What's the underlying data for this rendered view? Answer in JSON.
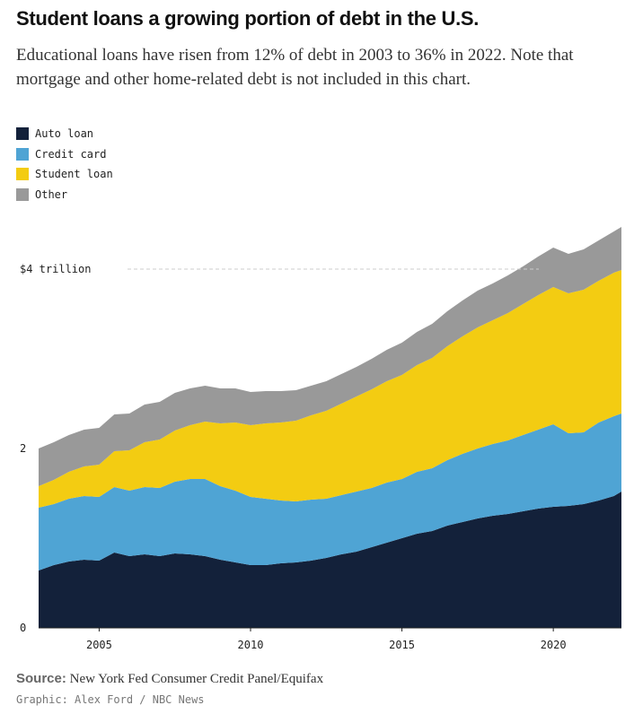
{
  "title": "Student loans a growing portion of debt in the U.S.",
  "subtitle": "Educational loans have risen from 12% of debt in 2003 to 36% in 2022. Note that mortgage and other home-related debt is not included in this chart.",
  "source": {
    "label": "Source:",
    "text": "New York Fed Consumer Credit Panel/Equifax"
  },
  "credit": "Graphic: Alex Ford / NBC News",
  "colors": {
    "auto": "#13213a",
    "credit": "#4fa4d4",
    "student": "#f3cc12",
    "other": "#999999",
    "reference_line": "#cccccc",
    "axis": "#222222"
  },
  "chart_data": {
    "type": "area",
    "stacked": true,
    "x": [
      2003.0,
      2003.5,
      2004.0,
      2004.5,
      2005.0,
      2005.5,
      2006.0,
      2006.5,
      2007.0,
      2007.5,
      2008.0,
      2008.5,
      2009.0,
      2009.5,
      2010.0,
      2010.5,
      2011.0,
      2011.5,
      2012.0,
      2012.5,
      2013.0,
      2013.5,
      2014.0,
      2014.5,
      2015.0,
      2015.5,
      2016.0,
      2016.5,
      2017.0,
      2017.5,
      2018.0,
      2018.5,
      2019.0,
      2019.5,
      2020.0,
      2020.5,
      2021.0,
      2021.5,
      2022.0,
      2022.25
    ],
    "series": [
      {
        "name": "Auto loan",
        "color_key": "auto",
        "values": [
          0.64,
          0.7,
          0.74,
          0.76,
          0.75,
          0.84,
          0.8,
          0.82,
          0.8,
          0.83,
          0.82,
          0.8,
          0.76,
          0.73,
          0.7,
          0.7,
          0.72,
          0.73,
          0.75,
          0.78,
          0.82,
          0.85,
          0.9,
          0.95,
          1.0,
          1.05,
          1.08,
          1.14,
          1.18,
          1.22,
          1.25,
          1.27,
          1.3,
          1.33,
          1.35,
          1.36,
          1.38,
          1.42,
          1.47,
          1.52
        ]
      },
      {
        "name": "Credit card",
        "color_key": "credit",
        "values": [
          0.7,
          0.68,
          0.7,
          0.71,
          0.71,
          0.73,
          0.73,
          0.75,
          0.76,
          0.8,
          0.84,
          0.86,
          0.82,
          0.8,
          0.76,
          0.74,
          0.7,
          0.68,
          0.68,
          0.66,
          0.66,
          0.67,
          0.66,
          0.67,
          0.66,
          0.69,
          0.7,
          0.73,
          0.76,
          0.78,
          0.8,
          0.82,
          0.85,
          0.88,
          0.92,
          0.81,
          0.8,
          0.87,
          0.89,
          0.87
        ]
      },
      {
        "name": "Student loan",
        "color_key": "student",
        "values": [
          0.24,
          0.27,
          0.3,
          0.33,
          0.36,
          0.4,
          0.45,
          0.5,
          0.54,
          0.57,
          0.6,
          0.64,
          0.7,
          0.76,
          0.8,
          0.84,
          0.87,
          0.9,
          0.94,
          0.98,
          1.02,
          1.06,
          1.1,
          1.13,
          1.16,
          1.19,
          1.23,
          1.27,
          1.31,
          1.35,
          1.38,
          1.42,
          1.46,
          1.5,
          1.53,
          1.56,
          1.59,
          1.58,
          1.6,
          1.6
        ]
      },
      {
        "name": "Other",
        "color_key": "other",
        "values": [
          0.42,
          0.42,
          0.41,
          0.41,
          0.41,
          0.41,
          0.41,
          0.42,
          0.42,
          0.42,
          0.41,
          0.4,
          0.39,
          0.38,
          0.37,
          0.36,
          0.35,
          0.34,
          0.33,
          0.33,
          0.33,
          0.33,
          0.34,
          0.35,
          0.36,
          0.37,
          0.38,
          0.39,
          0.4,
          0.41,
          0.41,
          0.42,
          0.42,
          0.43,
          0.44,
          0.44,
          0.45,
          0.45,
          0.46,
          0.48
        ]
      }
    ],
    "y_ticks": [
      {
        "value": 0,
        "label": "0"
      },
      {
        "value": 2,
        "label": "2"
      },
      {
        "value": 4,
        "label": "$4 trillion"
      }
    ],
    "x_ticks": [
      {
        "value": 2005,
        "label": "2005"
      },
      {
        "value": 2010,
        "label": "2010"
      },
      {
        "value": 2015,
        "label": "2015"
      },
      {
        "value": 2020,
        "label": "2020"
      }
    ],
    "reference_line": 4,
    "xlim": [
      2003.0,
      2022.25
    ],
    "ylim": [
      0,
      4.5
    ]
  }
}
